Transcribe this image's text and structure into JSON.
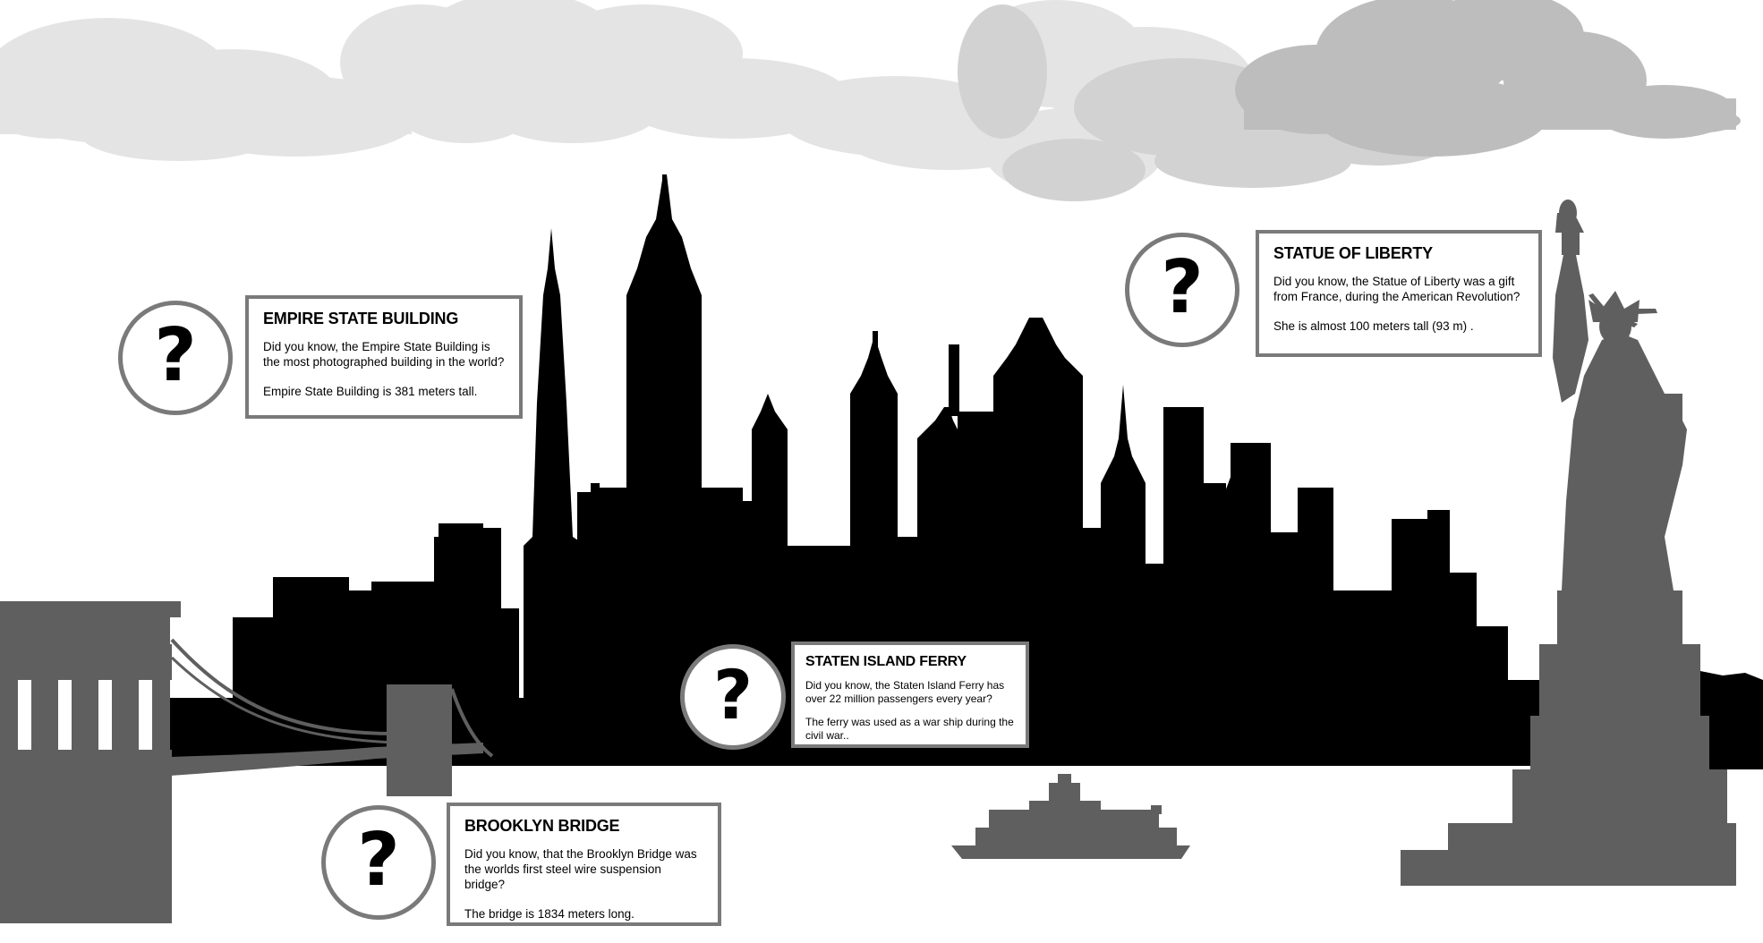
{
  "hotspot_symbol": "?",
  "colors": {
    "skyline": "#000000",
    "landmark_gray": "#5f5f5f",
    "cloud_light": "#e4e4e4",
    "cloud_mid": "#d2d2d2",
    "cloud_dark": "#bdbdbd",
    "border": "#7a7a7a"
  },
  "cards": {
    "empire_state": {
      "title": "EMPIRE STATE BUILDING",
      "line1": "Did you know, the Empire State Building is the most photographed building in the world?",
      "line2": "Empire State Building is 381 meters tall."
    },
    "statue_of_liberty": {
      "title": "STATUE OF LIBERTY",
      "line1": "Did you know, the Statue of Liberty was a gift from France, during the American Revolution?",
      "line2": "She is almost 100 meters tall (93 m) ."
    },
    "staten_island_ferry": {
      "title": "STATEN ISLAND FERRY",
      "line1": "Did you know, the Staten Island Ferry has over 22 million passengers every year?",
      "line2": "The ferry was used as a war ship during the civil war.."
    },
    "brooklyn_bridge": {
      "title": "BROOKLYN BRIDGE",
      "line1": "Did you know, that the Brooklyn Bridge was the worlds first steel wire suspension bridge?",
      "line2": "The bridge is  1834 meters long."
    }
  }
}
